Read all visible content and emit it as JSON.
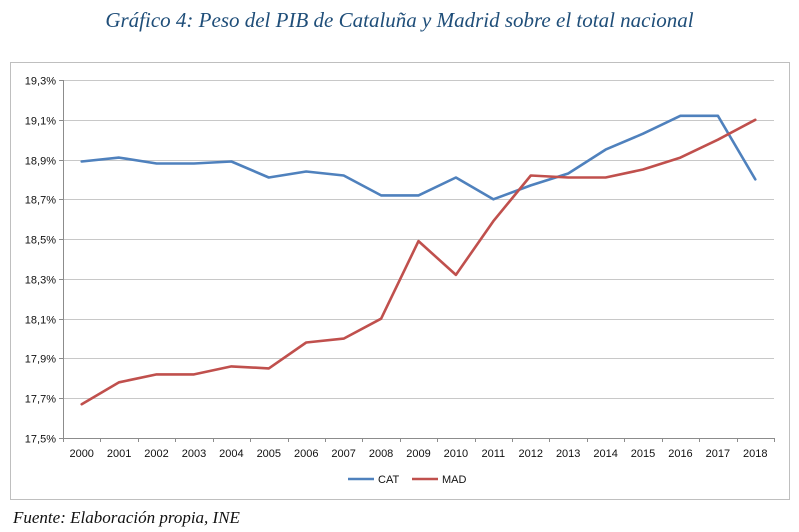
{
  "chart_title": "Gráfico 4: Peso del PIB de Cataluña y Madrid sobre el total nacional",
  "source": "Fuente: Elaboración propia, INE",
  "colors": {
    "CAT": "#4F81BD",
    "MAD": "#C0504D",
    "grid": "#c8c8c8",
    "axis": "#8c8c8c"
  },
  "chart_data": {
    "type": "line",
    "title": "Gráfico 4: Peso del PIB de Cataluña y Madrid sobre el total nacional",
    "xlabel": "",
    "ylabel": "",
    "categories": [
      "2000",
      "2001",
      "2002",
      "2003",
      "2004",
      "2005",
      "2006",
      "2007",
      "2008",
      "2009",
      "2010",
      "2011",
      "2012",
      "2013",
      "2014",
      "2015",
      "2016",
      "2017",
      "2018"
    ],
    "ylim": [
      17.5,
      19.3
    ],
    "yticks": [
      17.5,
      17.7,
      17.9,
      18.1,
      18.3,
      18.5,
      18.7,
      18.9,
      19.1,
      19.3
    ],
    "ytick_labels": [
      "17,5%",
      "17,7%",
      "17,9%",
      "18,1%",
      "18,3%",
      "18,5%",
      "18,7%",
      "18,9%",
      "19,1%",
      "19,3%"
    ],
    "grid": true,
    "legend_position": "bottom",
    "series": [
      {
        "name": "CAT",
        "values": [
          18.89,
          18.91,
          18.88,
          18.88,
          18.89,
          18.81,
          18.84,
          18.82,
          18.72,
          18.72,
          18.81,
          18.7,
          18.77,
          18.83,
          18.95,
          19.03,
          19.12,
          19.12,
          18.8
        ]
      },
      {
        "name": "MAD",
        "values": [
          17.67,
          17.78,
          17.82,
          17.82,
          17.86,
          17.85,
          17.98,
          18.0,
          18.1,
          18.49,
          18.32,
          18.59,
          18.82,
          18.81,
          18.81,
          18.85,
          18.91,
          19.0,
          19.1
        ]
      }
    ]
  }
}
